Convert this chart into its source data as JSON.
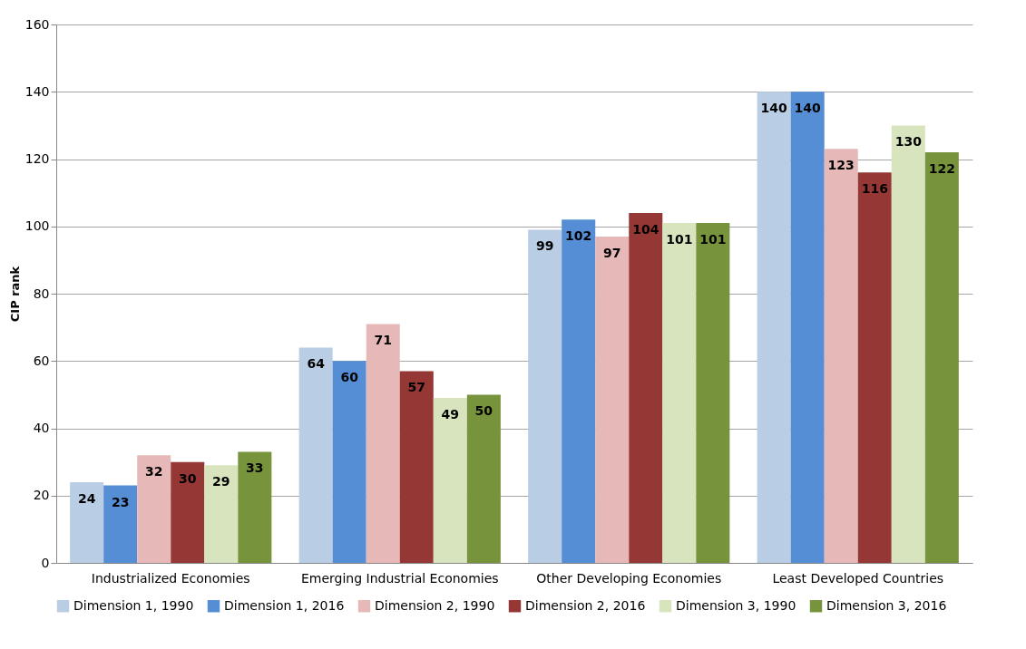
{
  "chart_data": {
    "type": "bar",
    "ylabel": "CIP rank",
    "categories": [
      "Industrialized Economies",
      "Emerging Industrial Economies",
      "Other Developing Economies",
      "Least Developed Countries"
    ],
    "series": [
      {
        "name": "Dimension 1, 1990",
        "color": "#b9cde5",
        "values": [
          24,
          64,
          99,
          140
        ]
      },
      {
        "name": "Dimension 1, 2016",
        "color": "#558ed5",
        "values": [
          23,
          60,
          102,
          140
        ]
      },
      {
        "name": "Dimension 2, 1990",
        "color": "#e6b9b8",
        "values": [
          32,
          71,
          97,
          123
        ]
      },
      {
        "name": "Dimension 2, 2016",
        "color": "#953735",
        "values": [
          30,
          57,
          104,
          116
        ]
      },
      {
        "name": "Dimension 3, 1990",
        "color": "#d7e4bd",
        "values": [
          29,
          49,
          101,
          130
        ]
      },
      {
        "name": "Dimension 3, 2016",
        "color": "#77933c",
        "values": [
          33,
          50,
          101,
          122
        ]
      }
    ],
    "ylim": [
      0,
      160
    ],
    "yticks": [
      0,
      20,
      40,
      60,
      80,
      100,
      120,
      140,
      160
    ],
    "grid": "y",
    "legend": "bottom",
    "data_labels": true
  }
}
